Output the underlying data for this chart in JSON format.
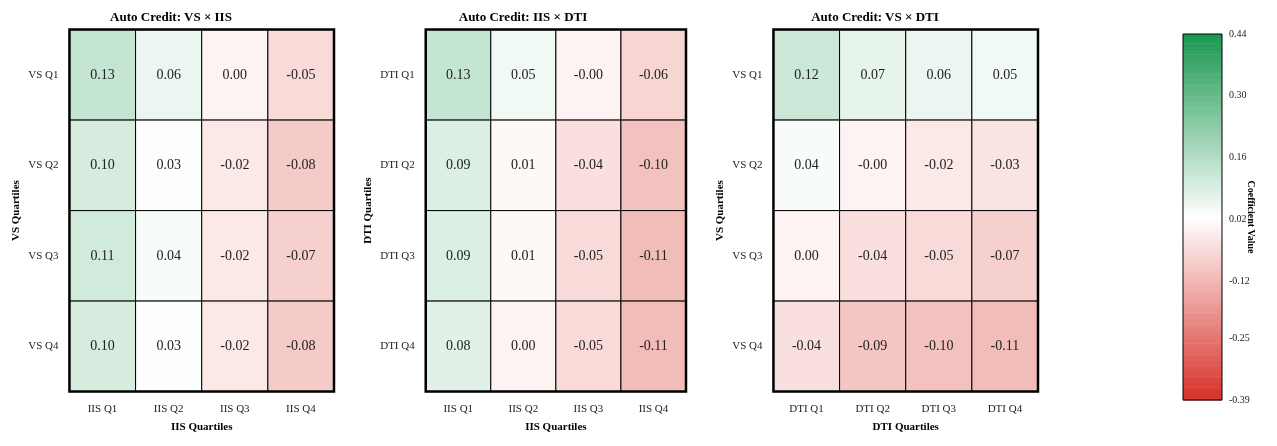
{
  "chart_data": [
    {
      "type": "heatmap",
      "title": "Auto Credit: VS × IIS",
      "xlabel": "IIS Quartiles",
      "ylabel": "VS Quartiles",
      "categories": [
        "IIS Q1",
        "IIS Q2",
        "IIS Q3",
        "IIS Q4"
      ],
      "y_categories": [
        "VS Q1",
        "VS Q2",
        "VS Q3",
        "VS Q4"
      ],
      "cells": [
        [
          0.13,
          0.06,
          0.0,
          -0.05
        ],
        [
          0.1,
          0.03,
          -0.02,
          -0.08
        ],
        [
          0.11,
          0.04,
          -0.02,
          -0.07
        ],
        [
          0.1,
          0.03,
          -0.02,
          -0.08
        ]
      ],
      "cell_labels": [
        [
          "0.13",
          "0.06",
          "0.00",
          "-0.05"
        ],
        [
          "0.10",
          "0.03",
          "-0.02",
          "-0.08"
        ],
        [
          "0.11",
          "0.04",
          "-0.02",
          "-0.07"
        ],
        [
          "0.10",
          "0.03",
          "-0.02",
          "-0.08"
        ]
      ]
    },
    {
      "type": "heatmap",
      "title": "Auto Credit: IIS × DTI",
      "xlabel": "IIS Quartiles",
      "ylabel": "DTI Quartiles",
      "categories": [
        "IIS Q1",
        "IIS Q2",
        "IIS Q3",
        "IIS Q4"
      ],
      "y_categories": [
        "DTI Q1",
        "DTI Q2",
        "DTI Q3",
        "DTI Q4"
      ],
      "cells": [
        [
          0.13,
          0.05,
          0,
          -0.06
        ],
        [
          0.09,
          0.01,
          -0.04,
          -0.1
        ],
        [
          0.09,
          0.01,
          -0.05,
          -0.11
        ],
        [
          0.08,
          0.0,
          -0.05,
          -0.11
        ]
      ],
      "cell_labels": [
        [
          "0.13",
          "0.05",
          "-0.00",
          "-0.06"
        ],
        [
          "0.09",
          "0.01",
          "-0.04",
          "-0.10"
        ],
        [
          "0.09",
          "0.01",
          "-0.05",
          "-0.11"
        ],
        [
          "0.08",
          "0.00",
          "-0.05",
          "-0.11"
        ]
      ]
    },
    {
      "type": "heatmap",
      "title": "Auto Credit: VS × DTI",
      "xlabel": "DTI Quartiles",
      "ylabel": "VS Quartiles",
      "categories": [
        "DTI Q1",
        "DTI Q2",
        "DTI Q3",
        "DTI Q4"
      ],
      "y_categories": [
        "VS Q1",
        "VS Q2",
        "VS Q3",
        "VS Q4"
      ],
      "cells": [
        [
          0.12,
          0.07,
          0.06,
          0.05
        ],
        [
          0.04,
          0,
          -0.02,
          -0.03
        ],
        [
          0.0,
          -0.04,
          -0.05,
          -0.07
        ],
        [
          -0.04,
          -0.09,
          -0.1,
          -0.11
        ]
      ],
      "cell_labels": [
        [
          "0.12",
          "0.07",
          "0.06",
          "0.05"
        ],
        [
          "0.04",
          "-0.00",
          "-0.02",
          "-0.03"
        ],
        [
          "0.00",
          "-0.04",
          "-0.05",
          "-0.07"
        ],
        [
          "-0.04",
          "-0.09",
          "-0.10",
          "-0.11"
        ]
      ],
      "clim": [
        -0.39,
        0.44
      ],
      "cticks": [
        0.44,
        {
          "value": 0.3,
          "label": "0.30"
        },
        0.16,
        0.02,
        -0.12,
        -0.25,
        -0.39
      ],
      "clabel": "Coefficient Value"
    }
  ]
}
